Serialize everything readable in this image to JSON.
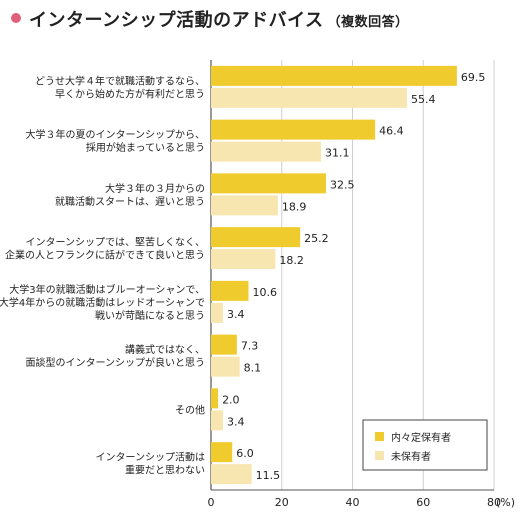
{
  "title": "インターンシップ活動のアドバイス",
  "subtitle": "（複数回答）",
  "colors": {
    "accent_dot": "#e0607a",
    "series1": "#f0cb2e",
    "series2": "#f8e6b0",
    "grid": "#cfcfcf",
    "axis": "#555555"
  },
  "chart_data": {
    "type": "bar",
    "orientation": "horizontal",
    "categories": [
      [
        "どうせ大学４年で就職活動するなら、",
        "早くから始めた方が有利だと思う"
      ],
      [
        "大学３年の夏のインターンシップから、",
        "採用が始まっていると思う"
      ],
      [
        "大学３年の３月からの",
        "就職活動スタートは、遅いと思う"
      ],
      [
        "インターンシップでは、堅苦しくなく、",
        "企業の人とフランクに話ができて良いと思う"
      ],
      [
        "大学3年の就職活動はブルーオーシャンで、",
        "大学4年からの就職活動はレッドオーシャンで",
        "戦いが苛酷になると思う"
      ],
      [
        "講義式ではなく、",
        "面談型のインターンシップが良いと思う"
      ],
      [
        "その他"
      ],
      [
        "インターンシップ活動は",
        "重要だと思わない"
      ]
    ],
    "series": [
      {
        "name": "内々定保有者",
        "values": [
          69.5,
          46.4,
          32.5,
          25.2,
          10.6,
          7.3,
          2.0,
          6.0
        ]
      },
      {
        "name": "未保有者",
        "values": [
          55.4,
          31.1,
          18.9,
          18.2,
          3.4,
          8.1,
          3.4,
          11.5
        ]
      }
    ],
    "value_labels": [
      [
        "69.5",
        "46.4",
        "32.5",
        "25.2",
        "10.6",
        "7.3",
        "2.0",
        "6.0"
      ],
      [
        "55.4",
        "31.1",
        "18.9",
        "18.2",
        "3.4",
        "8.1",
        "3.4",
        "11.5"
      ]
    ],
    "xlim": [
      0,
      80
    ],
    "xticks": [
      "0",
      "20",
      "40",
      "60",
      "80"
    ],
    "x_unit": "(%)",
    "grid": true,
    "legend_position": "bottom-right"
  }
}
